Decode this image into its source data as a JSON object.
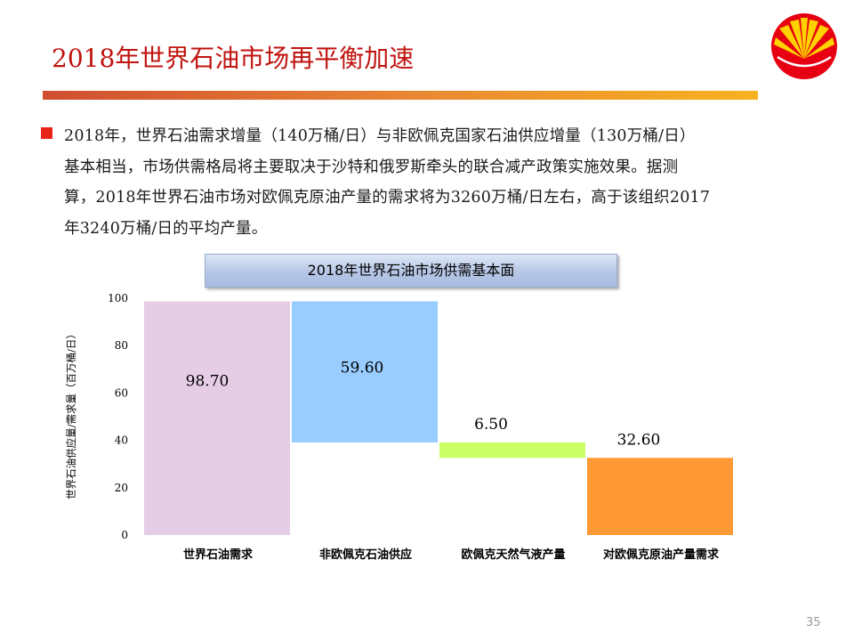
{
  "slide": {
    "title": "2018年世界石油市场再平衡加速",
    "paragraph_lines": [
      "2018年，世界石油需求增量（140万桶/日）与非欧佩克国家石油供应增量（130万桶/日）",
      "基本相当，市场供需格局将主要取决于沙特和俄罗斯牵头的联合减产政策实施效果。据测",
      "算，2018年世界石油市场对欧佩克原油产量的需求将为3260万桶/日左右，高于该组织2017",
      "年3240万桶/日的平均产量。"
    ],
    "chart_title": "2018年世界石油市场供需基本面",
    "page_number": "35",
    "accent_color": "#c0140f"
  },
  "chart_data": {
    "type": "bar",
    "subtype": "waterfall",
    "categories": [
      "世界石油需求",
      "非欧佩克石油供应",
      "欧佩克天然气液产量",
      "对欧佩克原油产量需求"
    ],
    "values": [
      98.7,
      59.6,
      6.5,
      32.6
    ],
    "bar_ranges": [
      [
        0,
        98.7
      ],
      [
        39.1,
        98.7
      ],
      [
        32.6,
        39.1
      ],
      [
        0,
        32.6
      ]
    ],
    "data_labels": [
      "98.70",
      "59.60",
      "6.50",
      "32.60"
    ],
    "colors": [
      "#e6cde6",
      "#99ccff",
      "#ccff66",
      "#ff9933"
    ],
    "ylabel": "世界石油供应量/需求量（百万桶/日）",
    "ylim": [
      0,
      100
    ],
    "yticks": [
      "0",
      "20",
      "40",
      "60",
      "80",
      "100"
    ],
    "grid": false
  }
}
